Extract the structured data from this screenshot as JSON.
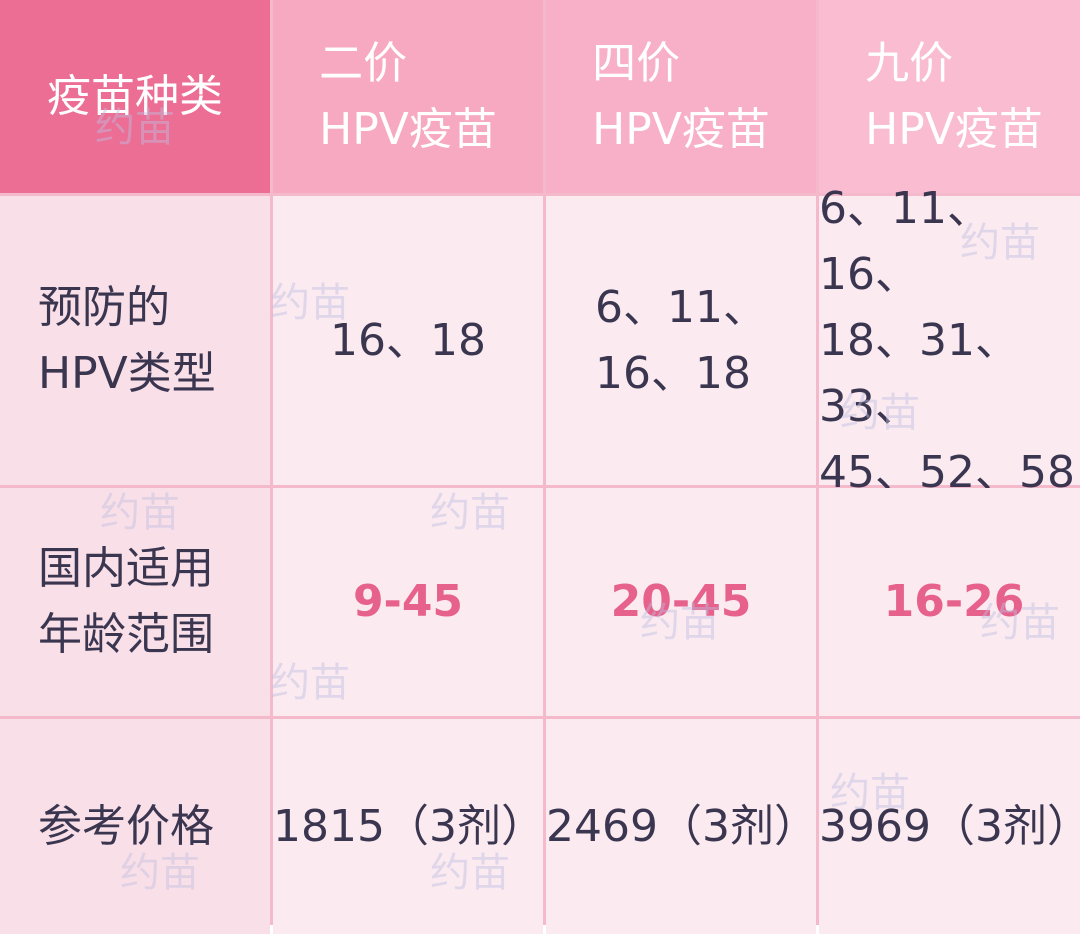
{
  "table": {
    "header": [
      "疫苗种类",
      "二价\nHPV疫苗",
      "四价\nHPV疫苗",
      "九价\nHPV疫苗"
    ],
    "rows": [
      [
        "预防的\nHPV类型",
        "16、18",
        "6、11、\n16、18",
        "6、11、16、\n18、31、33、\n45、52、58"
      ],
      [
        "国内适用\n年龄范围",
        "9-45",
        "20-45",
        "16-26"
      ],
      [
        "参考价格",
        "1815（3剂）",
        "2469（3剂）",
        "3969（3剂）"
      ]
    ]
  },
  "watermark": "约苗"
}
